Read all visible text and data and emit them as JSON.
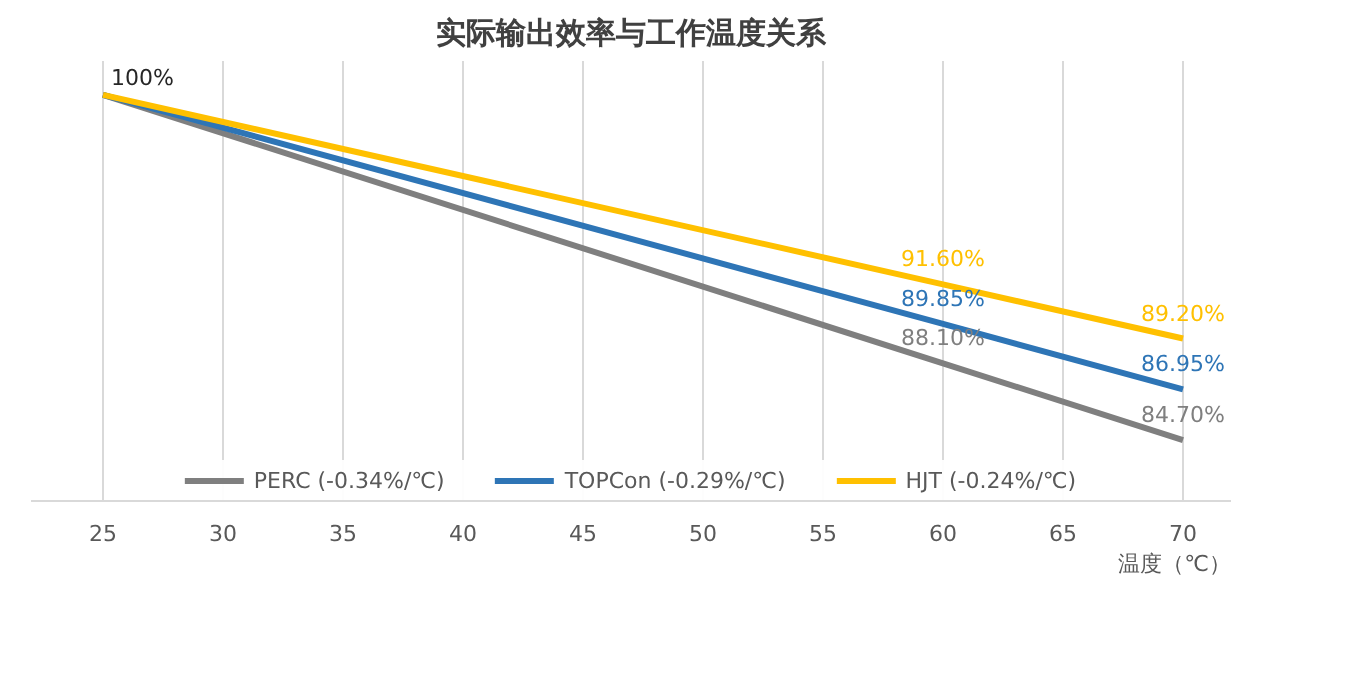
{
  "chart_data": {
    "type": "line",
    "title": "实际输出效率与工作温度关系",
    "xlabel": "温度（℃）",
    "x": [
      25,
      60,
      70
    ],
    "xlim": [
      22,
      72
    ],
    "xticks": [
      25,
      30,
      35,
      40,
      45,
      50,
      55,
      60,
      65,
      70
    ],
    "ylim": [
      82,
      101.5
    ],
    "tick_labels": "x",
    "grid": "x",
    "legend": "bottom",
    "marker": "none",
    "line_style": "solid",
    "series": [
      {
        "name": "PERC (-0.34%/℃)",
        "color": "#7f7f7f",
        "values": [
          100,
          88.1,
          84.7
        ],
        "value_labels": [
          "100%",
          "88.10%",
          "84.70%"
        ]
      },
      {
        "name": "TOPCon (-0.29%/℃)",
        "color": "#2e75b6",
        "values": [
          100,
          89.85,
          86.95
        ],
        "value_labels": [
          null,
          "89.85%",
          "86.95%"
        ]
      },
      {
        "name": "HJT (-0.24%/℃)",
        "color": "#ffc000",
        "values": [
          100,
          91.6,
          89.2
        ],
        "value_labels": [
          null,
          "91.60%",
          "89.20%"
        ]
      }
    ]
  }
}
